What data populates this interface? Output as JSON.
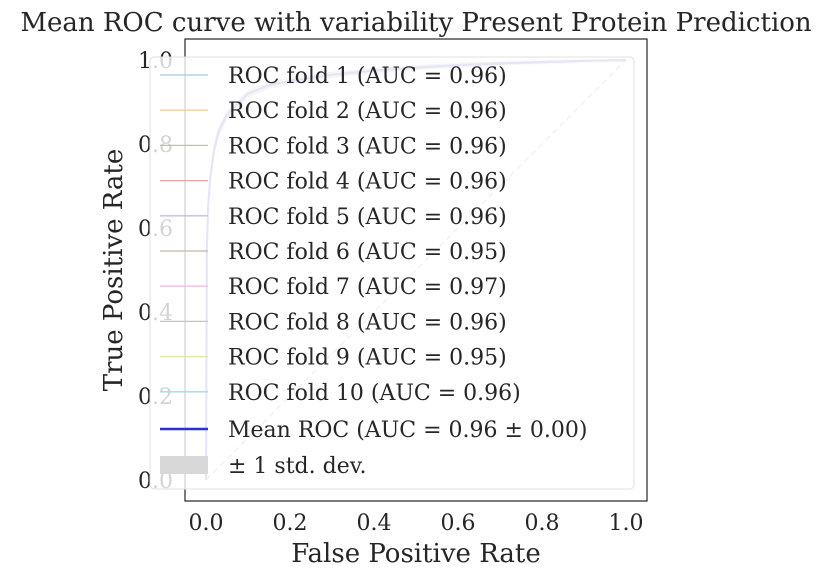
{
  "chart_data": {
    "type": "line",
    "title": "Mean ROC curve with variability Present Protein Prediction",
    "xlabel": "False Positive Rate",
    "ylabel": "True Positive Rate",
    "xlim": [
      -0.05,
      1.05
    ],
    "ylim": [
      -0.05,
      1.05
    ],
    "xticks": [
      "0.0",
      "0.2",
      "0.4",
      "0.6",
      "0.8",
      "1.0"
    ],
    "yticks": [
      "0.0",
      "0.2",
      "0.4",
      "0.6",
      "0.8",
      "1.0"
    ],
    "legend_position": "upper-left",
    "chance_line": {
      "x": [
        0,
        1
      ],
      "y": [
        0,
        1
      ],
      "color": "#b0b4e0"
    },
    "folds": [
      {
        "name": "ROC fold 1 (AUC = 0.96)",
        "color": "#a8cbe8"
      },
      {
        "name": "ROC fold 2 (AUC = 0.96)",
        "color": "#f8c89c"
      },
      {
        "name": "ROC fold 3 (AUC = 0.96)",
        "color": "#9ed39e"
      },
      {
        "name": "ROC fold 4 (AUC = 0.96)",
        "color": "#eea3a3"
      },
      {
        "name": "ROC fold 5 (AUC = 0.96)",
        "color": "#c8bbe0"
      },
      {
        "name": "ROC fold 6 (AUC = 0.95)",
        "color": "#c9b2ac"
      },
      {
        "name": "ROC fold 7 (AUC = 0.97)",
        "color": "#f1bde3"
      },
      {
        "name": "ROC fold 8 (AUC = 0.96)",
        "color": "#c4c4c4"
      },
      {
        "name": "ROC fold 9 (AUC = 0.95)",
        "color": "#e6e6a4"
      },
      {
        "name": "ROC fold 10 (AUC = 0.96)",
        "color": "#a2dbe6"
      }
    ],
    "mean_roc": {
      "name": "Mean ROC (AUC = 0.96 ± 0.00)",
      "color": "#2d2de0",
      "x": [
        0,
        0.002,
        0.005,
        0.01,
        0.02,
        0.03,
        0.05,
        0.08,
        0.1,
        0.15,
        0.2,
        0.3,
        0.4,
        0.5,
        0.6,
        0.7,
        0.8,
        0.9,
        1.0
      ],
      "y": [
        0,
        0.55,
        0.65,
        0.72,
        0.79,
        0.83,
        0.87,
        0.9,
        0.92,
        0.94,
        0.95,
        0.965,
        0.975,
        0.982,
        0.988,
        0.992,
        0.995,
        0.998,
        1.0
      ]
    },
    "std_band": {
      "name": "± 1 std. dev.",
      "color": "#d8d8d8"
    }
  }
}
